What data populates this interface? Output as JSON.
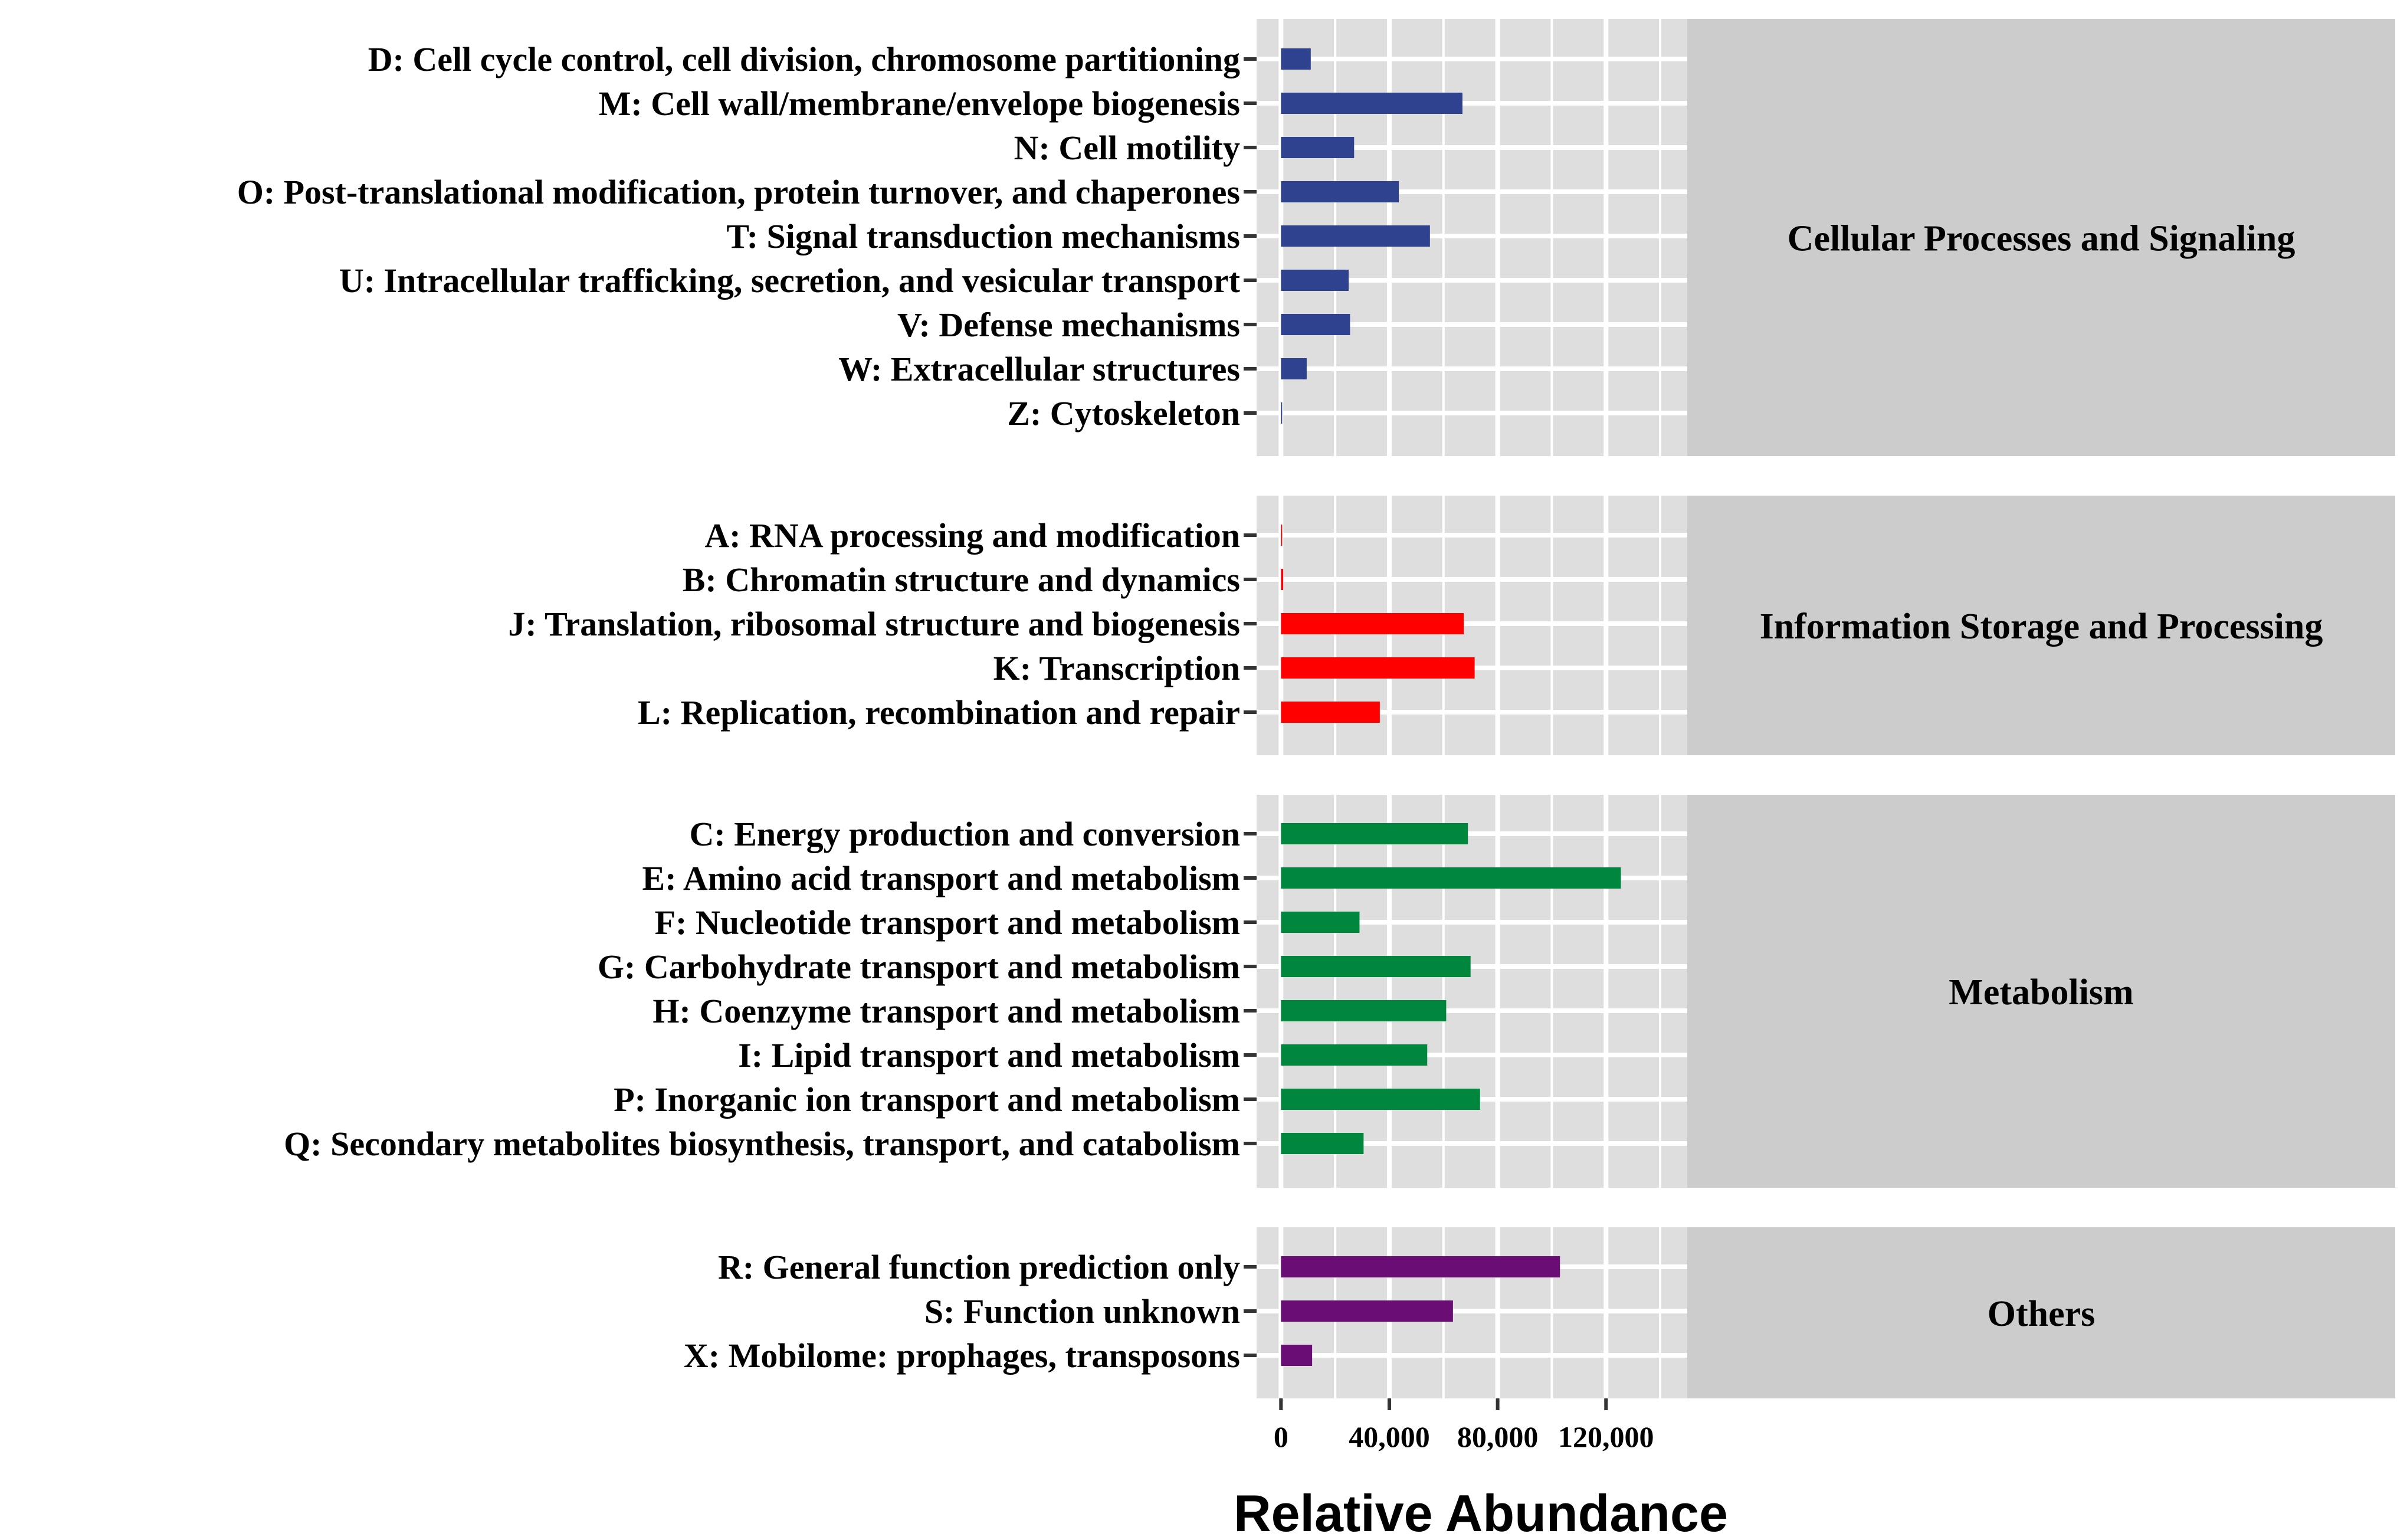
{
  "chart_data": {
    "type": "bar",
    "orientation": "horizontal",
    "xlabel": "Relative Abundance",
    "x_ticks": [
      {
        "value": 0,
        "label": "0"
      },
      {
        "value": 40000,
        "label": "40,000"
      },
      {
        "value": 80000,
        "label": "80,000"
      },
      {
        "value": 120000,
        "label": "120,000"
      }
    ],
    "xlim": [
      -9000,
      150000
    ],
    "gridlines": [
      0,
      20000,
      40000,
      60000,
      80000,
      100000,
      120000,
      140000
    ],
    "panels": [
      {
        "name": "Cellular Processes and Signaling",
        "color": "#2E4290",
        "categories": [
          "D: Cell cycle control, cell division, chromosome partitioning",
          "M: Cell wall/membrane/envelope biogenesis",
          "N: Cell motility",
          "O: Post-translational modification, protein turnover, and chaperones",
          "T: Signal transduction mechanisms",
          "U: Intracellular trafficking, secretion, and vesicular transport",
          "V: Defense mechanisms",
          "W: Extracellular structures",
          "Z: Cytoskeleton"
        ],
        "values": [
          11000,
          67000,
          27000,
          43500,
          55000,
          25000,
          25500,
          9500,
          300
        ]
      },
      {
        "name": "Information Storage and Processing",
        "color": "#FF0000",
        "categories": [
          "A: RNA processing and modification",
          "B: Chromatin structure and dynamics",
          "J: Translation, ribosomal structure and biogenesis",
          "K: Transcription",
          "L: Replication, recombination and repair"
        ],
        "values": [
          400,
          800,
          67500,
          71500,
          36500
        ]
      },
      {
        "name": "Metabolism",
        "color": "#00873E",
        "categories": [
          "C: Energy production and conversion",
          "E: Amino acid transport and metabolism",
          "F: Nucleotide transport and metabolism",
          "G: Carbohydrate transport and metabolism",
          "H: Coenzyme transport and metabolism",
          "I: Lipid transport and metabolism",
          "P: Inorganic ion transport and metabolism",
          "Q: Secondary metabolites biosynthesis, transport, and catabolism"
        ],
        "values": [
          69000,
          125500,
          29000,
          70000,
          61000,
          54000,
          73500,
          30500
        ]
      },
      {
        "name": "Others",
        "color": "#6A0D75",
        "categories": [
          "R: General function prediction only",
          "S: Function unknown",
          "X: Mobilome: prophages, transposons"
        ],
        "values": [
          103000,
          63500,
          11500
        ]
      }
    ]
  }
}
